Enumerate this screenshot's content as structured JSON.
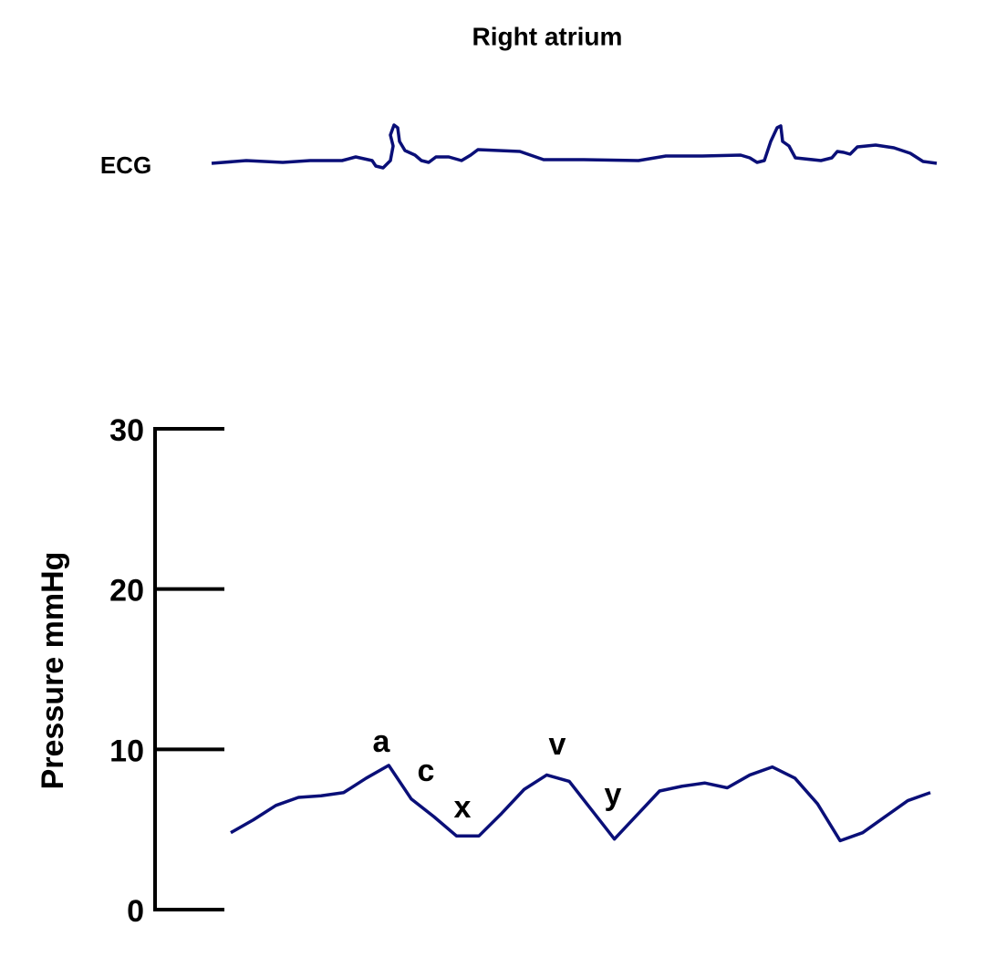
{
  "chart_data": {
    "type": "line",
    "title": "Right atrium",
    "ecg_label": "ECG",
    "ylabel": "Pressure mmHg",
    "series": [
      {
        "color": "#0a0f78",
        "values": [
          4.8,
          5.6,
          6.5,
          7.0,
          7.1,
          7.3,
          8.2,
          9.0,
          6.9,
          5.8,
          4.6,
          4.6,
          6.0,
          7.5,
          8.4,
          8.0,
          6.2,
          4.4,
          5.9,
          7.4,
          7.7,
          7.9,
          7.6,
          8.4,
          8.9,
          8.2,
          6.6,
          4.3,
          4.8,
          5.8,
          6.8,
          7.3
        ]
      }
    ],
    "annotations": [
      "a",
      "c",
      "x",
      "v",
      "y"
    ],
    "ylim": [
      0,
      30
    ],
    "yticks": [
      0,
      10,
      20,
      30
    ]
  }
}
